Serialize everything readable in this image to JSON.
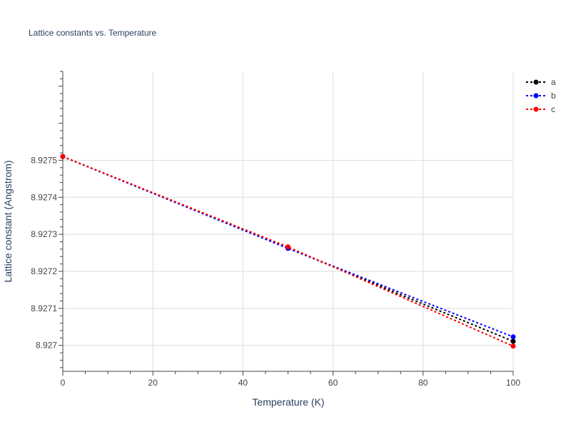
{
  "chart_data": {
    "type": "line",
    "title": "Lattice constants vs. Temperature",
    "xlabel": "Temperature (K)",
    "ylabel": "Lattice constant (Angstrom)",
    "xlim": [
      0,
      100
    ],
    "ylim": [
      8.92693,
      8.92774
    ],
    "x_ticks": [
      0,
      20,
      40,
      60,
      80,
      100
    ],
    "y_ticks": [
      8.927,
      8.9271,
      8.9272,
      8.9273,
      8.9274,
      8.9275
    ],
    "y_tick_labels": [
      "8.927",
      "8.9271",
      "8.9272",
      "8.9273",
      "8.9274",
      "8.9275"
    ],
    "grid": true,
    "legend_position": "top-right",
    "series": [
      {
        "name": "a",
        "color": "#000000",
        "x": [
          0,
          50,
          100
        ],
        "y": [
          8.92751,
          8.927263,
          8.927011
        ]
      },
      {
        "name": "b",
        "color": "#0000ff",
        "x": [
          0,
          50,
          100
        ],
        "y": [
          8.92751,
          8.927262,
          8.927023
        ]
      },
      {
        "name": "c",
        "color": "#ff0000",
        "x": [
          0,
          50,
          100
        ],
        "y": [
          8.92751,
          8.927266,
          8.926998
        ]
      }
    ]
  }
}
